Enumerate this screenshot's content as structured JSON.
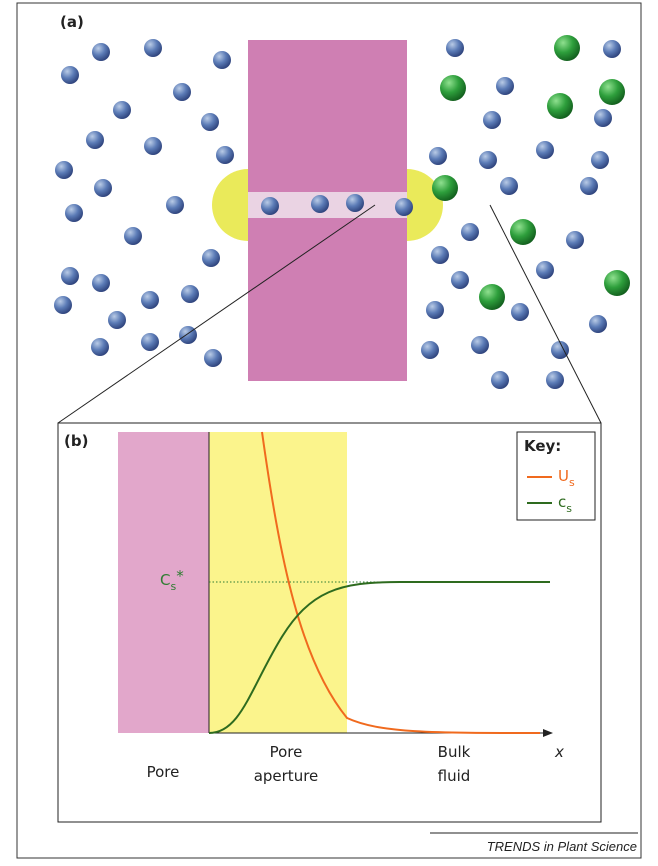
{
  "panel_a": {
    "label": "(a)"
  },
  "panel_b": {
    "label": "(b)",
    "key": {
      "title": "Key:",
      "entries": [
        {
          "symbol": "U",
          "subscript": "s"
        },
        {
          "symbol": "c",
          "subscript": "s"
        }
      ]
    },
    "reference": {
      "symbol": "C",
      "subscript": "s",
      "suffix": "*"
    },
    "regions": [
      {
        "lines": [
          "Pore"
        ]
      },
      {
        "lines": [
          "Pore",
          "aperture"
        ]
      },
      {
        "lines": [
          "Bulk",
          "fluid"
        ]
      }
    ],
    "axis_label": "x"
  },
  "footer": "TRENDS in Plant Science"
}
